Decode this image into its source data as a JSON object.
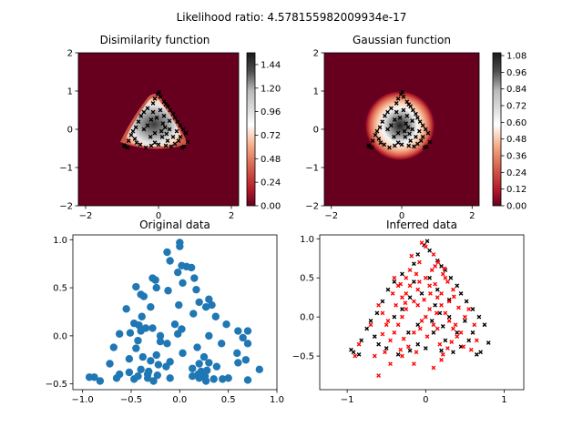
{
  "figure": {
    "suptitle": "Likelihood ratio: 4.578155982009934e-17"
  },
  "chart_data": [
    {
      "type": "heatmap",
      "title": "Disimilarity function",
      "xlim": [
        -2.2,
        2.2
      ],
      "ylim": [
        -2,
        2
      ],
      "xticks": [
        "−2",
        "0",
        "2"
      ],
      "yticks": [
        "2",
        "1",
        "0",
        "−1",
        "−2"
      ],
      "colorbar": {
        "min": 0,
        "max": 1.56,
        "ticks": [
          "0.00",
          "0.24",
          "0.48",
          "0.72",
          "0.96",
          "1.20",
          "1.44"
        ],
        "colormap": "RdGy"
      },
      "overlay": "inferred black points (black x markers)"
    },
    {
      "type": "heatmap",
      "title": "Gaussian function",
      "xlim": [
        -2.2,
        2.2
      ],
      "ylim": [
        -2,
        2
      ],
      "xticks": [
        "−2",
        "0",
        "2"
      ],
      "yticks": [
        "2",
        "1",
        "0",
        "−1",
        "−2"
      ],
      "colorbar": {
        "min": 0,
        "max": 1.1,
        "ticks": [
          "0.00",
          "0.12",
          "0.24",
          "0.36",
          "0.48",
          "0.60",
          "0.72",
          "0.84",
          "0.96",
          "1.08"
        ],
        "colormap": "RdGy"
      },
      "overlay": "inferred black points (black x markers)"
    },
    {
      "type": "scatter",
      "title": "Original data",
      "xlim": [
        -1.1,
        1.0
      ],
      "ylim": [
        -0.56,
        1.05
      ],
      "xticks": [
        "−1.0",
        "−0.5",
        "0.0",
        "0.5",
        "1.0"
      ],
      "yticks": [
        "1.0",
        "0.5",
        "0.0",
        "−0.5"
      ],
      "color": "#1f77b4",
      "points": [
        [
          0.0,
          0.97
        ],
        [
          0.0,
          0.93
        ],
        [
          -0.13,
          0.87
        ],
        [
          -0.1,
          0.78
        ],
        [
          0.07,
          0.72
        ],
        [
          0.02,
          0.73
        ],
        [
          0.12,
          0.71
        ],
        [
          -0.02,
          0.66
        ],
        [
          0.15,
          0.6
        ],
        [
          -0.28,
          0.6
        ],
        [
          -0.25,
          0.58
        ],
        [
          -0.24,
          0.5
        ],
        [
          0.03,
          0.55
        ],
        [
          -0.45,
          0.51
        ],
        [
          -0.4,
          0.43
        ],
        [
          -0.37,
          0.41
        ],
        [
          -0.12,
          0.47
        ],
        [
          0.17,
          0.48
        ],
        [
          -0.3,
          0.3
        ],
        [
          -0.01,
          0.32
        ],
        [
          0.3,
          0.38
        ],
        [
          0.33,
          0.32
        ],
        [
          0.2,
          0.35
        ],
        [
          0.27,
          0.3
        ],
        [
          -0.55,
          0.28
        ],
        [
          -0.39,
          0.2
        ],
        [
          -0.47,
          0.13
        ],
        [
          0.37,
          0.2
        ],
        [
          -0.05,
          0.12
        ],
        [
          0.14,
          0.23
        ],
        [
          -0.42,
          0.11
        ],
        [
          0.48,
          0.12
        ],
        [
          -0.35,
          0.08
        ],
        [
          -0.02,
          0.02
        ],
        [
          -0.4,
          0.05
        ],
        [
          -0.28,
          0.08
        ],
        [
          0.02,
          0.07
        ],
        [
          -0.62,
          0.02
        ],
        [
          -0.51,
          0.03
        ],
        [
          -0.2,
          0.0
        ],
        [
          0.3,
          0.0
        ],
        [
          0.6,
          0.05
        ],
        [
          0.7,
          0.05
        ],
        [
          0.65,
          -0.02
        ],
        [
          -0.2,
          -0.06
        ],
        [
          -0.43,
          -0.05
        ],
        [
          -0.13,
          -0.08
        ],
        [
          0.43,
          -0.08
        ],
        [
          0.7,
          -0.08
        ],
        [
          -0.68,
          -0.12
        ],
        [
          -0.45,
          -0.13
        ],
        [
          0.18,
          -0.12
        ],
        [
          -0.24,
          -0.2
        ],
        [
          0.59,
          -0.18
        ],
        [
          -0.3,
          -0.26
        ],
        [
          -0.1,
          -0.27
        ],
        [
          0.25,
          -0.22
        ],
        [
          -0.52,
          -0.24
        ],
        [
          -0.38,
          -0.22
        ],
        [
          0.03,
          -0.18
        ],
        [
          0.3,
          -0.28
        ],
        [
          0.6,
          -0.28
        ],
        [
          0.68,
          -0.25
        ],
        [
          -0.72,
          -0.29
        ],
        [
          -0.22,
          -0.3
        ],
        [
          -0.14,
          -0.32
        ],
        [
          0.13,
          -0.34
        ],
        [
          0.2,
          -0.29
        ],
        [
          0.38,
          -0.32
        ],
        [
          0.82,
          -0.35
        ],
        [
          -0.4,
          -0.35
        ],
        [
          -0.32,
          -0.37
        ],
        [
          -0.52,
          -0.38
        ],
        [
          -0.33,
          -0.4
        ],
        [
          0.22,
          -0.37
        ],
        [
          0.28,
          -0.36
        ],
        [
          -0.23,
          -0.41
        ],
        [
          0.13,
          -0.42
        ],
        [
          0.26,
          -0.42
        ],
        [
          -0.93,
          -0.43
        ],
        [
          -0.88,
          -0.43
        ],
        [
          -0.47,
          -0.45
        ],
        [
          -0.43,
          -0.42
        ],
        [
          -0.33,
          -0.44
        ],
        [
          -0.27,
          -0.47
        ],
        [
          -0.1,
          -0.44
        ],
        [
          0.2,
          -0.44
        ],
        [
          0.35,
          -0.45
        ],
        [
          0.44,
          -0.45
        ],
        [
          -0.82,
          -0.47
        ],
        [
          0.7,
          -0.46
        ],
        [
          -0.62,
          -0.4
        ],
        [
          -0.65,
          -0.44
        ],
        [
          0.5,
          -0.44
        ],
        [
          0.27,
          -0.47
        ],
        [
          0.19,
          -0.4
        ]
      ]
    },
    {
      "type": "scatter",
      "title": "Inferred data",
      "xlim": [
        -1.35,
        1.25
      ],
      "ylim": [
        -0.93,
        1.05
      ],
      "xticks": [
        "−1",
        "0",
        "1"
      ],
      "yticks": [
        "1.0",
        "0.5",
        "0.0",
        "−0.5"
      ],
      "series": [
        {
          "color": "#000000",
          "marker": "x",
          "points": [
            [
              0.02,
              0.97
            ],
            [
              -0.02,
              0.92
            ],
            [
              0.05,
              0.85
            ],
            [
              -0.1,
              0.8
            ],
            [
              0.15,
              0.72
            ],
            [
              -0.15,
              0.68
            ],
            [
              0.2,
              0.65
            ],
            [
              0.25,
              0.6
            ],
            [
              -0.3,
              0.55
            ],
            [
              0.32,
              0.5
            ],
            [
              -0.4,
              0.45
            ],
            [
              0.4,
              0.4
            ],
            [
              -0.48,
              0.35
            ],
            [
              0.45,
              0.3
            ],
            [
              0.52,
              0.2
            ],
            [
              -0.55,
              0.2
            ],
            [
              0.6,
              0.1
            ],
            [
              -0.62,
              0.05
            ],
            [
              0.68,
              0.0
            ],
            [
              -0.7,
              -0.05
            ],
            [
              0.75,
              -0.1
            ],
            [
              -0.75,
              -0.15
            ],
            [
              0.8,
              -0.33
            ],
            [
              -0.82,
              -0.3
            ],
            [
              0.55,
              -0.3
            ],
            [
              -0.6,
              -0.35
            ],
            [
              0.45,
              -0.38
            ],
            [
              -0.5,
              -0.4
            ],
            [
              0.2,
              -0.43
            ],
            [
              -0.2,
              -0.43
            ],
            [
              0.0,
              -0.4
            ],
            [
              -0.95,
              -0.42
            ],
            [
              -0.92,
              -0.45
            ],
            [
              -0.85,
              -0.48
            ],
            [
              0.65,
              -0.48
            ],
            [
              0.7,
              -0.45
            ],
            [
              -0.35,
              -0.48
            ],
            [
              0.35,
              -0.45
            ],
            [
              0.1,
              -0.2
            ],
            [
              -0.1,
              -0.1
            ],
            [
              0.12,
              0.15
            ],
            [
              -0.05,
              0.3
            ],
            [
              0.3,
              0.0
            ],
            [
              -0.3,
              0.1
            ],
            [
              0.22,
              -0.12
            ],
            [
              -0.22,
              -0.2
            ],
            [
              0.05,
              0.5
            ],
            [
              0.15,
              0.35
            ],
            [
              -0.2,
              0.25
            ],
            [
              0.4,
              -0.2
            ],
            [
              -0.4,
              0.0
            ],
            [
              0.5,
              -0.05
            ],
            [
              0.3,
              0.22
            ],
            [
              -0.15,
              0.45
            ],
            [
              0.08,
              -0.05
            ],
            [
              0.6,
              -0.2
            ],
            [
              -0.65,
              -0.25
            ],
            [
              0.25,
              -0.3
            ],
            [
              -0.1,
              -0.35
            ],
            [
              0.18,
              0.05
            ]
          ]
        },
        {
          "color": "#ff0000",
          "marker": "x",
          "points": [
            [
              -0.05,
              0.95
            ],
            [
              0.0,
              0.9
            ],
            [
              0.1,
              0.8
            ],
            [
              -0.08,
              0.7
            ],
            [
              0.12,
              0.65
            ],
            [
              -0.2,
              0.6
            ],
            [
              0.22,
              0.55
            ],
            [
              -0.25,
              0.5
            ],
            [
              0.28,
              0.45
            ],
            [
              -0.35,
              0.4
            ],
            [
              0.35,
              0.35
            ],
            [
              -0.42,
              0.3
            ],
            [
              0.0,
              0.5
            ],
            [
              0.05,
              0.4
            ],
            [
              -0.1,
              0.35
            ],
            [
              0.15,
              0.25
            ],
            [
              -0.15,
              0.2
            ],
            [
              0.2,
              0.15
            ],
            [
              -0.25,
              0.1
            ],
            [
              0.25,
              0.05
            ],
            [
              -0.3,
              0.0
            ],
            [
              0.3,
              -0.05
            ],
            [
              -0.35,
              -0.1
            ],
            [
              0.35,
              -0.15
            ],
            [
              -0.4,
              -0.2
            ],
            [
              0.4,
              -0.25
            ],
            [
              -0.45,
              -0.3
            ],
            [
              0.45,
              -0.2
            ],
            [
              -0.5,
              -0.1
            ],
            [
              0.5,
              0.0
            ],
            [
              -0.55,
              0.05
            ],
            [
              0.55,
              0.1
            ],
            [
              -0.6,
              0.15
            ],
            [
              -0.7,
              -0.1
            ],
            [
              0.65,
              -0.3
            ],
            [
              -0.3,
              -0.5
            ],
            [
              0.2,
              -0.55
            ],
            [
              -0.15,
              -0.6
            ],
            [
              0.1,
              -0.65
            ],
            [
              -0.45,
              -0.6
            ],
            [
              -0.65,
              -0.5
            ],
            [
              -0.85,
              -0.35
            ],
            [
              -0.9,
              -0.5
            ],
            [
              -0.6,
              -0.75
            ],
            [
              0.0,
              0.0
            ],
            [
              0.05,
              0.1
            ],
            [
              -0.05,
              -0.05
            ],
            [
              0.1,
              -0.1
            ],
            [
              -0.1,
              0.15
            ],
            [
              0.15,
              -0.15
            ],
            [
              -0.15,
              -0.2
            ],
            [
              0.2,
              0.3
            ],
            [
              -0.2,
              0.4
            ],
            [
              0.25,
              0.5
            ],
            [
              -0.25,
              0.3
            ],
            [
              0.3,
              0.2
            ],
            [
              -0.3,
              0.25
            ],
            [
              0.08,
              0.6
            ],
            [
              -0.12,
              0.55
            ],
            [
              0.18,
              -0.35
            ],
            [
              -0.22,
              -0.38
            ],
            [
              0.28,
              -0.4
            ],
            [
              -0.32,
              -0.42
            ],
            [
              0.38,
              -0.1
            ],
            [
              -0.38,
              0.15
            ],
            [
              0.42,
              0.12
            ],
            [
              -0.48,
              -0.05
            ],
            [
              0.12,
              0.42
            ],
            [
              -0.02,
              0.22
            ],
            [
              0.02,
              -0.25
            ],
            [
              0.06,
              0.3
            ],
            [
              -0.07,
              -0.15
            ],
            [
              0.33,
              -0.32
            ],
            [
              -0.28,
              -0.28
            ],
            [
              0.48,
              -0.38
            ],
            [
              -0.52,
              -0.45
            ],
            [
              0.58,
              -0.42
            ],
            [
              0.16,
              0.7
            ],
            [
              -0.18,
              0.78
            ],
            [
              0.24,
              0.62
            ],
            [
              -0.26,
              0.18
            ],
            [
              0.36,
              0.26
            ],
            [
              -0.4,
              0.5
            ],
            [
              -0.55,
              -0.22
            ],
            [
              0.62,
              -0.1
            ],
            [
              -0.08,
              0.45
            ],
            [
              0.14,
              0.05
            ],
            [
              -0.12,
              -0.45
            ],
            [
              0.22,
              -0.48
            ],
            [
              -0.32,
              0.42
            ]
          ]
        }
      ]
    }
  ]
}
